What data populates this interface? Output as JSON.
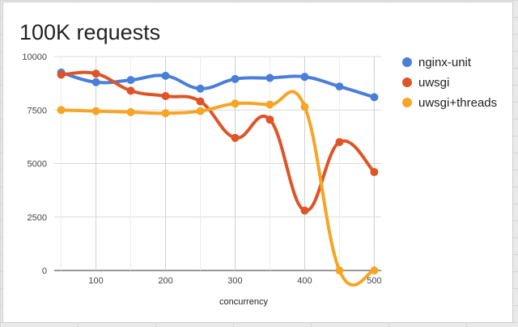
{
  "chart_data": {
    "type": "line",
    "title": "100K requests",
    "xlabel": "concurrency",
    "ylabel": "",
    "x": [
      50,
      100,
      150,
      200,
      250,
      300,
      350,
      400,
      450,
      500
    ],
    "x_ticks": [
      100,
      200,
      300,
      400,
      500
    ],
    "y_ticks": [
      0,
      2500,
      5000,
      7500,
      10000
    ],
    "xlim": [
      40,
      510
    ],
    "ylim": [
      0,
      10000
    ],
    "grid": true,
    "smooth": true,
    "legend_position": "right",
    "series": [
      {
        "name": "nginx-unit",
        "color": "#4a7fd8",
        "values": [
          9250,
          8800,
          8900,
          9100,
          8500,
          8950,
          9000,
          9050,
          8600,
          8100
        ]
      },
      {
        "name": "uwsgi",
        "color": "#de5428",
        "values": [
          9150,
          9200,
          8400,
          8150,
          7900,
          6200,
          7050,
          2800,
          6000,
          4600
        ]
      },
      {
        "name": "uwsgi+threads",
        "color": "#f6a524",
        "values": [
          7500,
          7450,
          7400,
          7350,
          7450,
          7800,
          7750,
          7650,
          0,
          0
        ]
      }
    ]
  }
}
